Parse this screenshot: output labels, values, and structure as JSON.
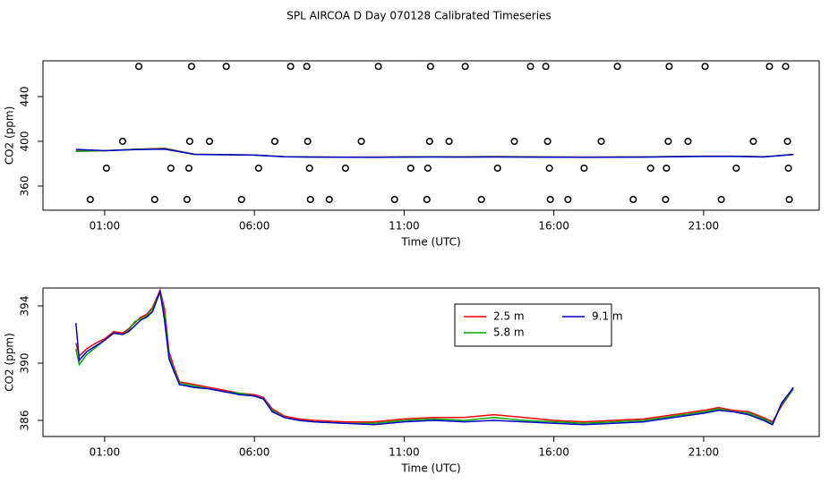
{
  "chart_data": [
    {
      "type": "scatter",
      "title": "SPL AIRCOA D  Day 070128  Calibrated Timeseries",
      "x_label": "Time (UTC)",
      "y_label": "CO2 (ppm)",
      "xlim": [
        -1.06,
        24.86
      ],
      "ylim": [
        338.4,
        472
      ],
      "xticks": [
        {
          "value": 1,
          "label": "01:00"
        },
        {
          "value": 6,
          "label": "06:00"
        },
        {
          "value": 11,
          "label": "11:00"
        },
        {
          "value": 16,
          "label": "16:00"
        },
        {
          "value": 21,
          "label": "21:00"
        }
      ],
      "yticks": [
        360,
        400,
        440
      ],
      "series": [
        {
          "kind": "points",
          "color": "#000000",
          "x": [
            2.14,
            3.9,
            5.06,
            7.21,
            7.75,
            10.14,
            11.88,
            13.04,
            15.22,
            15.73,
            18.12,
            19.85,
            21.05,
            23.2,
            23.74,
            1.6,
            3.84,
            4.5,
            6.68,
            7.78,
            9.57,
            11.85,
            12.5,
            14.68,
            15.79,
            17.58,
            19.82,
            20.48,
            22.66,
            23.8,
            1.06,
            3.21,
            3.81,
            6.14,
            7.84,
            9.04,
            11.22,
            11.79,
            14.12,
            15.85,
            17.01,
            19.23,
            19.76,
            22.09,
            23.83,
            0.52,
            2.67,
            3.75,
            5.57,
            7.87,
            8.5,
            10.68,
            11.76,
            13.58,
            15.88,
            16.47,
            18.65,
            19.73,
            21.59,
            23.86
          ],
          "values": [
            467,
            467,
            467,
            467,
            467,
            467,
            467,
            467,
            467,
            467,
            467,
            467,
            467,
            467,
            467,
            400,
            400,
            400,
            400,
            400,
            400,
            400,
            400,
            400,
            400,
            400,
            400,
            400,
            400,
            400,
            376,
            376,
            376,
            376,
            376,
            376,
            376,
            376,
            376,
            376,
            376,
            376,
            376,
            376,
            376,
            348,
            348,
            348,
            348,
            348,
            348,
            348,
            348,
            348,
            348,
            348,
            348,
            348,
            348,
            348
          ]
        },
        {
          "kind": "line",
          "color": "#ff0000",
          "x": [
            0.04,
            1,
            2,
            3,
            4,
            5,
            6,
            7,
            8,
            9,
            10,
            11,
            12,
            13,
            14,
            15,
            16,
            17,
            18,
            19,
            20,
            21,
            22,
            23,
            24
          ],
          "values": [
            391.4,
            391.7,
            392.8,
            393.8,
            388.5,
            388.1,
            387.8,
            386.3,
            386.0,
            385.9,
            385.9,
            386.1,
            386.2,
            386.2,
            386.4,
            386.2,
            386.0,
            385.9,
            386.0,
            386.1,
            386.4,
            386.7,
            386.7,
            386.2,
            388.2
          ]
        },
        {
          "kind": "line",
          "color": "#00aa00",
          "x": [
            0.04,
            1,
            2,
            3,
            4,
            5,
            6,
            7,
            8,
            9,
            10,
            11,
            12,
            13,
            14,
            15,
            16,
            17,
            18,
            19,
            20,
            21,
            22,
            23,
            24
          ],
          "values": [
            391.0,
            391.6,
            392.9,
            393.4,
            388.4,
            388.0,
            387.7,
            386.2,
            385.9,
            385.8,
            385.8,
            386.0,
            386.1,
            386.0,
            386.2,
            386.0,
            385.9,
            385.8,
            385.9,
            386.0,
            386.3,
            386.6,
            386.6,
            386.1,
            388.2
          ]
        },
        {
          "kind": "line",
          "color": "#0000cc",
          "x": [
            0.04,
            1,
            2,
            3,
            4,
            5,
            6,
            7,
            8,
            9,
            10,
            11,
            12,
            13,
            14,
            15,
            16,
            17,
            18,
            19,
            20,
            21,
            22,
            23,
            24
          ],
          "values": [
            392.8,
            391.6,
            392.6,
            393.0,
            388.3,
            388.0,
            387.7,
            386.2,
            385.9,
            385.8,
            385.7,
            385.9,
            386.0,
            385.9,
            386.0,
            385.9,
            385.8,
            385.7,
            385.8,
            385.9,
            386.2,
            386.5,
            386.6,
            386.0,
            388.3
          ]
        }
      ]
    },
    {
      "type": "line",
      "x_label": "Time (UTC)",
      "y_label": "CO2 (ppm)",
      "xlim": [
        -1.06,
        24.86
      ],
      "ylim": [
        384.875,
        395.25
      ],
      "xticks": [
        {
          "value": 1,
          "label": "01:00"
        },
        {
          "value": 6,
          "label": "06:00"
        },
        {
          "value": 11,
          "label": "11:00"
        },
        {
          "value": 16,
          "label": "16:00"
        },
        {
          "value": 21,
          "label": "21:00"
        }
      ],
      "yticks": [
        386,
        390,
        394
      ],
      "legend": "top",
      "x": [
        0.04,
        0.15,
        0.4,
        0.7,
        1.0,
        1.3,
        1.6,
        1.8,
        2.0,
        2.2,
        2.4,
        2.6,
        2.85,
        3.0,
        3.15,
        3.3,
        3.5,
        4.0,
        4.5,
        5.0,
        5.5,
        6.0,
        6.3,
        6.6,
        7.0,
        7.5,
        8,
        9,
        10,
        11,
        12,
        13,
        14,
        15,
        16,
        17,
        18,
        19,
        20,
        21,
        21.5,
        22,
        22.5,
        23,
        23.3,
        23.6,
        24.0
      ],
      "series": [
        {
          "name": "2.5 m",
          "color": "#ff0000",
          "values": [
            391.4,
            390.5,
            391.0,
            391.4,
            391.7,
            392.2,
            392.1,
            392.4,
            392.8,
            393.2,
            393.4,
            393.9,
            395.1,
            393.8,
            390.8,
            389.8,
            388.7,
            388.5,
            388.3,
            388.1,
            387.9,
            387.8,
            387.6,
            386.8,
            386.3,
            386.1,
            386.0,
            385.9,
            385.9,
            386.1,
            386.2,
            386.2,
            386.4,
            386.2,
            386.0,
            385.9,
            386.0,
            386.1,
            386.4,
            386.7,
            386.9,
            386.7,
            386.6,
            386.2,
            385.9,
            387.0,
            388.2
          ]
        },
        {
          "name": "5.8 m",
          "color": "#00aa00",
          "values": [
            391.0,
            389.9,
            390.6,
            391.1,
            391.6,
            392.1,
            392.0,
            392.3,
            392.9,
            393.1,
            393.3,
            393.8,
            395.0,
            393.4,
            390.5,
            389.6,
            388.6,
            388.4,
            388.2,
            388.0,
            387.9,
            387.7,
            387.5,
            386.7,
            386.2,
            386.0,
            385.9,
            385.8,
            385.8,
            386.0,
            386.1,
            386.0,
            386.2,
            386.0,
            385.9,
            385.8,
            385.9,
            386.0,
            386.3,
            386.6,
            386.8,
            386.6,
            386.5,
            386.1,
            385.8,
            387.1,
            388.2
          ]
        },
        {
          "name": "9.1 m",
          "color": "#0000cc",
          "values": [
            392.8,
            390.2,
            390.8,
            391.2,
            391.6,
            392.1,
            392.0,
            392.2,
            392.6,
            393.0,
            393.2,
            393.6,
            395.0,
            393.0,
            390.3,
            389.5,
            388.5,
            388.3,
            388.2,
            388.0,
            387.8,
            387.7,
            387.5,
            386.6,
            386.2,
            386.0,
            385.9,
            385.8,
            385.7,
            385.9,
            386.0,
            385.9,
            386.0,
            385.9,
            385.8,
            385.7,
            385.8,
            385.9,
            386.2,
            386.5,
            386.7,
            386.6,
            386.4,
            386.0,
            385.7,
            387.2,
            388.3
          ]
        }
      ]
    }
  ]
}
